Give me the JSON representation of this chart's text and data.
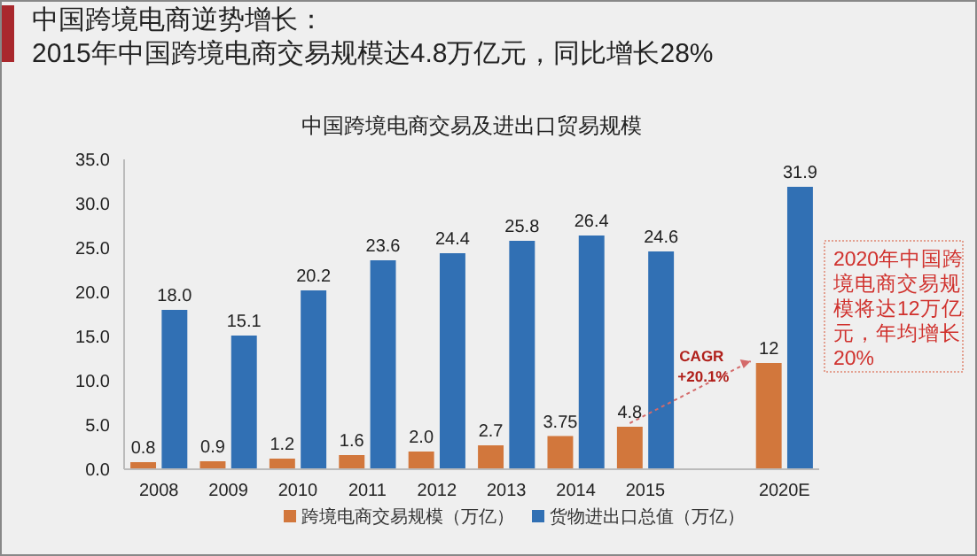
{
  "chart_data": {
    "type": "bar",
    "title": "中国跨境电商交易及进出口贸易规模",
    "categories": [
      "2008",
      "2009",
      "2010",
      "2011",
      "2012",
      "2013",
      "2014",
      "2015",
      null,
      "2020E"
    ],
    "series": [
      {
        "name": "跨境电商交易规模（万亿）",
        "color": "#d2773c",
        "values": [
          0.8,
          0.9,
          1.2,
          1.6,
          2.0,
          2.7,
          3.75,
          4.8,
          null,
          12
        ],
        "value_labels": [
          "0.8",
          "0.9",
          "1.2",
          "1.6",
          "2.0",
          "2.7",
          "3.75",
          "4.8",
          null,
          "12"
        ]
      },
      {
        "name": "货物进出口总值（万亿）",
        "color": "#3170b4",
        "values": [
          18.0,
          15.1,
          20.2,
          23.6,
          24.4,
          25.8,
          26.4,
          24.6,
          null,
          31.9
        ],
        "value_labels": [
          "18.0",
          "15.1",
          "20.2",
          "23.6",
          "24.4",
          "25.8",
          "26.4",
          "24.6",
          null,
          "31.9"
        ]
      }
    ],
    "ylim": [
      0,
      35
    ],
    "yticks": [
      {
        "value": 0,
        "label": "0.0"
      },
      {
        "value": 5,
        "label": "5.0"
      },
      {
        "value": 10,
        "label": "10.0"
      },
      {
        "value": 15,
        "label": "15.0"
      },
      {
        "value": 20,
        "label": "20.0"
      },
      {
        "value": 25,
        "label": "25.0"
      },
      {
        "value": 30,
        "label": "30.0"
      },
      {
        "value": 35,
        "label": "35.0"
      }
    ],
    "grid": false,
    "legend": "bottom",
    "annotations": [
      "中国跨境电商逆势增长：",
      "2015年中国跨境电商交易规模达4.8万亿元，同比增长28%",
      "CAGR",
      "+20.1%",
      "2020年中国跨境电商交易规模将达12万亿元，年均增长20%"
    ]
  }
}
